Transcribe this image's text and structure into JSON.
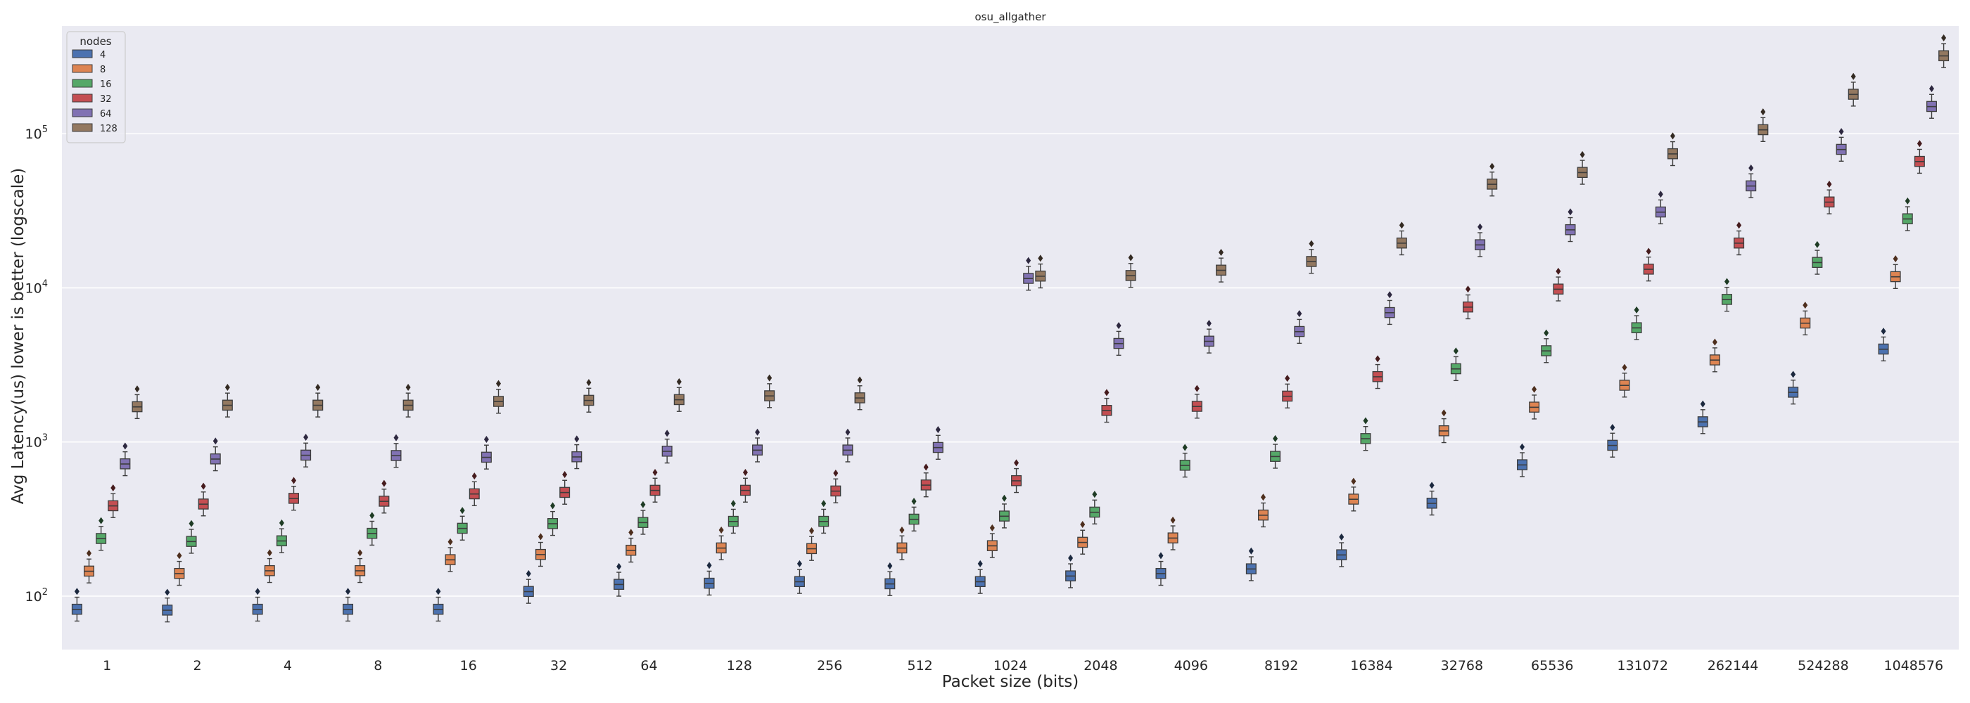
{
  "chart_data": {
    "type": "box",
    "title": "osu_allgather",
    "xlabel": "Packet size (bits)",
    "ylabel": "Avg Latency(us) lower is better (logscale)",
    "yscale": "log",
    "ylim": [
      45,
      500000
    ],
    "y_ticks": [
      {
        "value": 100,
        "label_base": "10",
        "label_exp": "2"
      },
      {
        "value": 1000,
        "label_base": "10",
        "label_exp": "3"
      },
      {
        "value": 10000,
        "label_base": "10",
        "label_exp": "4"
      },
      {
        "value": 100000,
        "label_base": "10",
        "label_exp": "5"
      }
    ],
    "grid": true,
    "legend": {
      "title": "nodes",
      "position": "top-left"
    },
    "categories": [
      "1",
      "2",
      "4",
      "8",
      "16",
      "32",
      "64",
      "128",
      "256",
      "512",
      "1024",
      "2048",
      "4096",
      "8192",
      "16384",
      "32768",
      "65536",
      "131072",
      "262144",
      "524288",
      "1048576"
    ],
    "series": [
      {
        "name": "4",
        "color": "#4c72b0",
        "medians": [
          82,
          81,
          82,
          82,
          82,
          107,
          119,
          121,
          124,
          120,
          124,
          135,
          140,
          150,
          185,
          400,
          710,
          950,
          1350,
          2100,
          4000
        ]
      },
      {
        "name": "8",
        "color": "#dd8452",
        "medians": [
          145,
          140,
          146,
          146,
          172,
          186,
          198,
          205,
          203,
          205,
          212,
          223,
          238,
          335,
          425,
          1180,
          1680,
          2330,
          3400,
          5900,
          11800
        ]
      },
      {
        "name": "16",
        "color": "#55a868",
        "medians": [
          236,
          226,
          228,
          255,
          275,
          295,
          300,
          305,
          305,
          315,
          330,
          350,
          705,
          805,
          1050,
          2980,
          3900,
          5500,
          8400,
          14600,
          28000
        ]
      },
      {
        "name": "32",
        "color": "#c44e52",
        "medians": [
          385,
          395,
          430,
          412,
          460,
          470,
          485,
          485,
          480,
          525,
          560,
          1600,
          1700,
          1980,
          2650,
          7500,
          9800,
          13200,
          19500,
          36000,
          66000
        ]
      },
      {
        "name": "64",
        "color": "#8172b3",
        "medians": [
          720,
          775,
          820,
          815,
          795,
          800,
          870,
          885,
          885,
          920,
          11500,
          4350,
          4500,
          5200,
          6900,
          19000,
          23800,
          31000,
          45800,
          79000,
          150000
        ]
      },
      {
        "name": "128",
        "color": "#937860",
        "medians": [
          1690,
          1730,
          1730,
          1730,
          1830,
          1860,
          1880,
          1990,
          1930,
          null,
          11900,
          12000,
          13000,
          14800,
          19500,
          47000,
          56000,
          74000,
          106000,
          180000,
          320000
        ]
      }
    ]
  }
}
